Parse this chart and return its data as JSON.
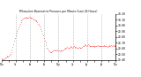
{
  "title": "Milwaukee Barometric Pressure per Minute (Last 24 Hours)",
  "line_color": "#ff0000",
  "bg_color": "#ffffff",
  "grid_color": "#888888",
  "border_color": "#000000",
  "ylim": [
    29.4,
    30.2
  ],
  "yticks": [
    29.4,
    29.5,
    29.6,
    29.7,
    29.8,
    29.9,
    30.0,
    30.1,
    30.2
  ],
  "ytick_labels": [
    "29.40",
    "29.50",
    "29.60",
    "29.70",
    "29.80",
    "29.90",
    "30.00",
    "30.10",
    "30.20"
  ],
  "vgrid_positions": [
    0.125,
    0.25,
    0.375,
    0.5,
    0.625,
    0.75,
    0.875
  ],
  "xtick_labels": [
    "12a",
    "",
    "3a",
    "",
    "6a",
    "",
    "9a",
    "",
    "12p",
    "",
    "3p",
    "",
    "6p",
    "",
    "9p",
    "",
    "12a"
  ],
  "pressure_data": [
    29.42,
    29.43,
    29.42,
    29.41,
    29.43,
    29.44,
    29.45,
    29.46,
    29.47,
    29.46,
    29.47,
    29.49,
    29.51,
    29.54,
    29.58,
    29.63,
    29.68,
    29.73,
    29.78,
    29.83,
    29.87,
    29.91,
    29.94,
    29.97,
    30.0,
    30.03,
    30.06,
    30.08,
    30.1,
    30.12,
    30.13,
    30.14,
    30.14,
    30.15,
    30.14,
    30.13,
    30.14,
    30.15,
    30.14,
    30.13,
    30.14,
    30.13,
    30.12,
    30.11,
    30.1,
    30.09,
    30.08,
    30.07,
    30.05,
    30.03,
    30.01,
    29.99,
    29.96,
    29.93,
    29.9,
    29.86,
    29.82,
    29.78,
    29.74,
    29.7,
    29.66,
    29.62,
    29.59,
    29.57,
    29.55,
    29.54,
    29.53,
    29.54,
    29.55,
    29.56,
    29.57,
    29.58,
    29.57,
    29.56,
    29.57,
    29.58,
    29.57,
    29.56,
    29.55,
    29.56,
    29.57,
    29.56,
    29.57,
    29.58,
    29.59,
    29.6,
    29.61,
    29.62,
    29.63,
    29.62,
    29.61,
    29.62,
    29.63,
    29.64,
    29.63,
    29.62,
    29.63,
    29.64,
    29.63,
    29.62,
    29.63,
    29.62,
    29.61,
    29.62,
    29.63,
    29.62,
    29.61,
    29.62,
    29.63,
    29.64,
    29.65,
    29.66,
    29.67,
    29.66,
    29.65,
    29.66,
    29.67,
    29.66,
    29.65,
    29.64,
    29.65,
    29.64,
    29.65,
    29.64,
    29.63,
    29.64,
    29.65,
    29.64,
    29.65,
    29.66,
    29.65,
    29.64,
    29.65,
    29.64,
    29.65,
    29.64,
    29.65,
    29.66,
    29.65,
    29.64,
    29.65,
    29.64,
    29.63,
    29.64,
    29.65,
    29.66,
    29.65,
    29.66,
    29.65,
    29.66,
    29.65,
    29.66,
    29.65,
    29.64
  ]
}
